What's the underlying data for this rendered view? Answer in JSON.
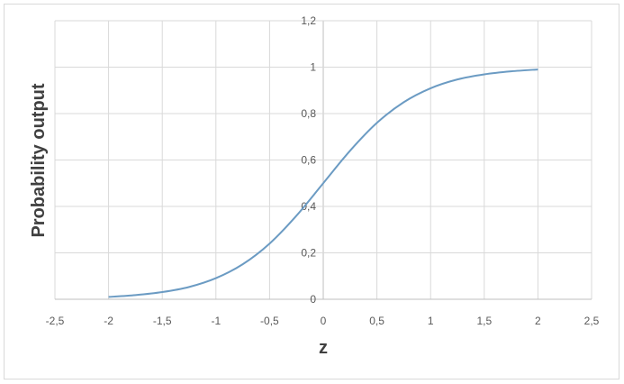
{
  "chart_data": {
    "type": "line",
    "title": "",
    "xlabel": "z",
    "ylabel": "Probability output",
    "xlim": [
      -2.5,
      2.5
    ],
    "ylim": [
      0,
      1.2
    ],
    "xticks": [
      "-2,5",
      "-2",
      "-1,5",
      "-1",
      "-0,5",
      "0",
      "0,5",
      "1",
      "1,5",
      "2",
      "2,5"
    ],
    "yticks": [
      "0",
      "0,2",
      "0,4",
      "0,6",
      "0,8",
      "1",
      "1,2"
    ],
    "grid": true,
    "series": [
      {
        "color": "#6b9bc3",
        "x": [
          -2,
          -1.75,
          -1.5,
          -1.25,
          -1,
          -0.75,
          -0.5,
          -0.25,
          0,
          0.25,
          0.5,
          0.75,
          1,
          1.25,
          1.5,
          1.75,
          2
        ],
        "y": [
          0.01,
          0.018,
          0.031,
          0.053,
          0.091,
          0.151,
          0.24,
          0.36,
          0.5,
          0.64,
          0.76,
          0.849,
          0.909,
          0.947,
          0.969,
          0.982,
          0.99
        ]
      }
    ]
  }
}
